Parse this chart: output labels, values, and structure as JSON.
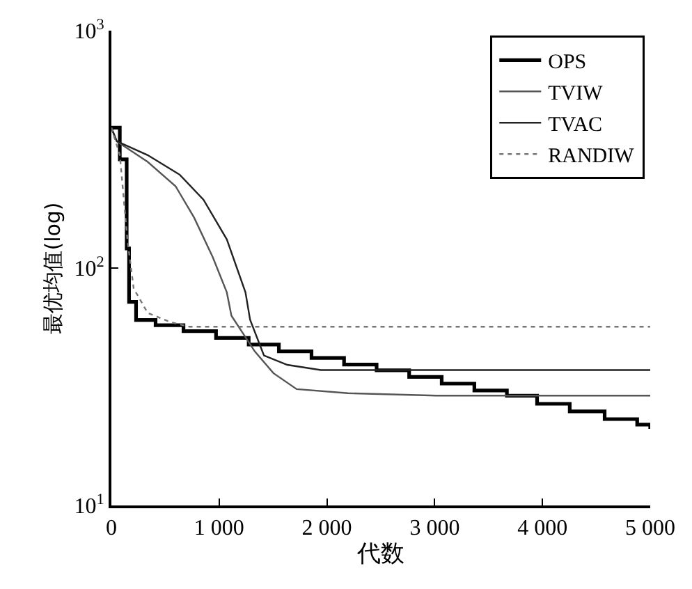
{
  "chart_data": {
    "type": "line",
    "xlabel": "代数",
    "ylabel": "最优均值(log)",
    "log": "y",
    "legend": "top right",
    "marker": "none",
    "xlim": [
      0,
      5000
    ],
    "ylim": [
      10,
      1000
    ],
    "xticks": [
      0,
      {
        "value": 1000,
        "label": "1 000"
      },
      {
        "value": 2000,
        "label": "2 000"
      },
      {
        "value": 3000,
        "label": "3 000"
      },
      {
        "value": 4000,
        "label": "4 000"
      },
      {
        "value": 5000,
        "label": "5 000"
      }
    ],
    "yticks": [
      {
        "value": 10,
        "label": "10$^{1}$"
      },
      {
        "value": 100,
        "label": "10$^{2}$"
      },
      {
        "value": 1000,
        "label": "10$^{3}$"
      }
    ],
    "series": [
      {
        "name": "OPS",
        "type": "step",
        "color": "#000000",
        "x": [
          0,
          78,
          142,
          164,
          229,
          410,
          669,
          971,
          1274,
          1554,
          1857,
          2159,
          2461,
          2763,
          3065,
          3368,
          3670,
          3950,
          4253,
          4577,
          4879,
          5000
        ],
        "values": [
          390,
          287,
          121,
          72,
          60.4,
          57.4,
          54.2,
          50.8,
          47.6,
          44.6,
          41.8,
          39.2,
          37.1,
          34.8,
          32.6,
          30.5,
          29.0,
          26.8,
          24.9,
          23.1,
          21.9,
          21.0
        ]
      },
      {
        "name": "TVIW",
        "color": "#555555",
        "x": [
          0,
          50,
          337,
          596,
          768,
          941,
          1071,
          1114,
          1330,
          1503,
          1719,
          2194,
          3018,
          5000
        ],
        "values": [
          390,
          342,
          280,
          221,
          163,
          111,
          79,
          63,
          44.6,
          36.1,
          30.9,
          29.7,
          29.0,
          29.0
        ]
      },
      {
        "name": "TVAC",
        "color": "#222222",
        "x": [
          0,
          50,
          337,
          635,
          855,
          1071,
          1244,
          1287,
          1416,
          1632,
          1943,
          5000
        ],
        "values": [
          390,
          342,
          299,
          247,
          194,
          132,
          79,
          60.6,
          42.8,
          39.1,
          37.2,
          37.2
        ]
      },
      {
        "name": "RANDIW",
        "color": "#777777",
        "line_style": "dotted",
        "x": [
          0,
          78,
          150,
          207,
          337,
          553,
          725,
          5000
        ],
        "values": [
          390,
          300,
          130,
          82,
          64.7,
          59.1,
          56.6,
          56.6
        ]
      }
    ]
  }
}
